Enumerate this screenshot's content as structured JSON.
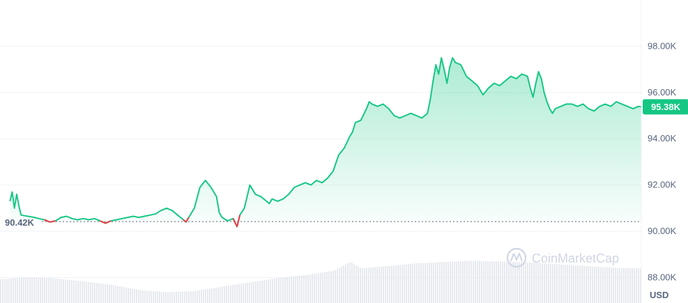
{
  "chart_data": {
    "type": "area",
    "baseline": 90.42,
    "baseline_label": "90.42K",
    "last_value": 95.38,
    "last_label": "95.38K",
    "y_unit": "USD",
    "ylim": [
      86.9,
      100.0
    ],
    "y_ticks": [
      {
        "value": 98,
        "label": "98.00K"
      },
      {
        "value": 96,
        "label": "96.00K"
      },
      {
        "value": 94,
        "label": "94.00K"
      },
      {
        "value": 92,
        "label": "92.00K"
      },
      {
        "value": 90,
        "label": "90.00K"
      },
      {
        "value": 88,
        "label": "88.00K"
      }
    ],
    "grid": true,
    "colors": {
      "up": "#16c784",
      "down": "#ea3943",
      "area_top": "#16c784"
    },
    "price": [
      [
        0.018,
        91.3
      ],
      [
        0.022,
        91.7
      ],
      [
        0.026,
        91.0
      ],
      [
        0.03,
        91.6
      ],
      [
        0.034,
        91.1
      ],
      [
        0.038,
        90.7
      ],
      [
        0.062,
        90.6
      ],
      [
        0.07,
        90.55
      ],
      [
        0.08,
        90.5
      ],
      [
        0.09,
        90.4
      ],
      [
        0.1,
        90.45
      ],
      [
        0.11,
        90.6
      ],
      [
        0.12,
        90.65
      ],
      [
        0.13,
        90.55
      ],
      [
        0.14,
        90.5
      ],
      [
        0.15,
        90.55
      ],
      [
        0.16,
        90.5
      ],
      [
        0.17,
        90.55
      ],
      [
        0.18,
        90.45
      ],
      [
        0.19,
        90.35
      ],
      [
        0.2,
        90.45
      ],
      [
        0.21,
        90.5
      ],
      [
        0.22,
        90.55
      ],
      [
        0.23,
        90.6
      ],
      [
        0.24,
        90.65
      ],
      [
        0.25,
        90.6
      ],
      [
        0.26,
        90.65
      ],
      [
        0.27,
        90.7
      ],
      [
        0.28,
        90.75
      ],
      [
        0.29,
        90.9
      ],
      [
        0.3,
        91.0
      ],
      [
        0.31,
        90.9
      ],
      [
        0.32,
        90.7
      ],
      [
        0.33,
        90.5
      ],
      [
        0.335,
        90.4
      ],
      [
        0.34,
        90.6
      ],
      [
        0.35,
        91.0
      ],
      [
        0.36,
        91.9
      ],
      [
        0.37,
        92.2
      ],
      [
        0.38,
        91.9
      ],
      [
        0.39,
        91.5
      ],
      [
        0.395,
        90.8
      ],
      [
        0.4,
        90.6
      ],
      [
        0.41,
        90.45
      ],
      [
        0.42,
        90.55
      ],
      [
        0.427,
        90.2
      ],
      [
        0.432,
        90.7
      ],
      [
        0.44,
        91.0
      ],
      [
        0.445,
        91.5
      ],
      [
        0.45,
        92.0
      ],
      [
        0.455,
        91.8
      ],
      [
        0.46,
        91.6
      ],
      [
        0.47,
        91.5
      ],
      [
        0.48,
        91.3
      ],
      [
        0.485,
        91.2
      ],
      [
        0.49,
        91.4
      ],
      [
        0.5,
        91.3
      ],
      [
        0.51,
        91.4
      ],
      [
        0.52,
        91.6
      ],
      [
        0.53,
        91.9
      ],
      [
        0.54,
        92.0
      ],
      [
        0.55,
        92.1
      ],
      [
        0.56,
        92.0
      ],
      [
        0.57,
        92.2
      ],
      [
        0.58,
        92.1
      ],
      [
        0.59,
        92.3
      ],
      [
        0.6,
        92.6
      ],
      [
        0.61,
        93.3
      ],
      [
        0.62,
        93.6
      ],
      [
        0.63,
        94.1
      ],
      [
        0.635,
        94.3
      ],
      [
        0.64,
        94.7
      ],
      [
        0.65,
        94.8
      ],
      [
        0.66,
        95.3
      ],
      [
        0.665,
        95.6
      ],
      [
        0.67,
        95.5
      ],
      [
        0.68,
        95.4
      ],
      [
        0.69,
        95.5
      ],
      [
        0.7,
        95.3
      ],
      [
        0.71,
        95.0
      ],
      [
        0.72,
        94.9
      ],
      [
        0.73,
        95.0
      ],
      [
        0.74,
        95.1
      ],
      [
        0.75,
        95.0
      ],
      [
        0.76,
        94.9
      ],
      [
        0.77,
        95.1
      ],
      [
        0.775,
        95.7
      ],
      [
        0.78,
        96.5
      ],
      [
        0.785,
        97.2
      ],
      [
        0.79,
        96.8
      ],
      [
        0.795,
        97.5
      ],
      [
        0.8,
        97.0
      ],
      [
        0.805,
        96.4
      ],
      [
        0.81,
        97.1
      ],
      [
        0.815,
        97.5
      ],
      [
        0.82,
        97.3
      ],
      [
        0.83,
        97.2
      ],
      [
        0.84,
        96.7
      ],
      [
        0.85,
        96.5
      ],
      [
        0.86,
        96.3
      ],
      [
        0.87,
        95.9
      ],
      [
        0.88,
        96.2
      ],
      [
        0.89,
        96.4
      ],
      [
        0.9,
        96.3
      ],
      [
        0.91,
        96.5
      ],
      [
        0.92,
        96.7
      ],
      [
        0.93,
        96.6
      ],
      [
        0.94,
        96.8
      ],
      [
        0.95,
        96.7
      ],
      [
        0.955,
        96.2
      ],
      [
        0.96,
        95.8
      ],
      [
        0.965,
        96.4
      ],
      [
        0.97,
        96.9
      ],
      [
        0.975,
        96.6
      ],
      [
        0.98,
        96.0
      ],
      [
        0.985,
        95.6
      ],
      [
        0.99,
        95.3
      ],
      [
        0.995,
        95.1
      ],
      [
        1.0,
        95.3
      ],
      [
        1.01,
        95.4
      ],
      [
        1.02,
        95.5
      ],
      [
        1.03,
        95.5
      ],
      [
        1.04,
        95.4
      ],
      [
        1.05,
        95.5
      ],
      [
        1.06,
        95.3
      ],
      [
        1.07,
        95.2
      ],
      [
        1.08,
        95.4
      ],
      [
        1.09,
        95.5
      ],
      [
        1.1,
        95.4
      ],
      [
        1.11,
        95.6
      ],
      [
        1.12,
        95.5
      ],
      [
        1.13,
        95.4
      ],
      [
        1.14,
        95.3
      ],
      [
        1.15,
        95.4
      ],
      [
        1.155,
        95.38
      ]
    ],
    "volume": [
      [
        0.0,
        0.55
      ],
      [
        0.05,
        0.6
      ],
      [
        0.1,
        0.57
      ],
      [
        0.15,
        0.5
      ],
      [
        0.2,
        0.42
      ],
      [
        0.25,
        0.3
      ],
      [
        0.3,
        0.25
      ],
      [
        0.35,
        0.28
      ],
      [
        0.4,
        0.38
      ],
      [
        0.45,
        0.48
      ],
      [
        0.5,
        0.58
      ],
      [
        0.55,
        0.65
      ],
      [
        0.6,
        0.75
      ],
      [
        0.63,
        0.95
      ],
      [
        0.65,
        0.8
      ],
      [
        0.7,
        0.86
      ],
      [
        0.75,
        0.92
      ],
      [
        0.8,
        0.95
      ],
      [
        0.85,
        0.98
      ],
      [
        0.9,
        0.96
      ],
      [
        0.95,
        0.94
      ],
      [
        1.0,
        0.9
      ],
      [
        1.05,
        0.86
      ],
      [
        1.1,
        0.82
      ],
      [
        1.155,
        0.8
      ]
    ]
  },
  "watermark": {
    "text": "CoinMarketCap"
  }
}
